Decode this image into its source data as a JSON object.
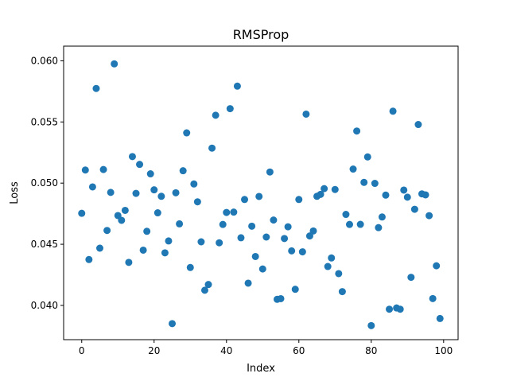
{
  "chart_data": {
    "type": "scatter",
    "title": "RMSProp",
    "xlabel": "Index",
    "ylabel": "Loss",
    "xlim": [
      -5.0,
      104.0
    ],
    "ylim": [
      0.0372,
      0.0612
    ],
    "xticks": [
      0,
      20,
      40,
      60,
      80,
      100
    ],
    "xtick_labels": [
      "0",
      "20",
      "40",
      "60",
      "80",
      "100"
    ],
    "yticks": [
      0.04,
      0.045,
      0.05,
      0.055,
      0.06
    ],
    "ytick_labels": [
      "0.040",
      "0.045",
      "0.050",
      "0.055",
      "0.060"
    ],
    "grid": false,
    "color": "#1f77b4",
    "x": [
      0,
      1,
      2,
      3,
      4,
      5,
      6,
      7,
      8,
      9,
      10,
      11,
      12,
      13,
      14,
      15,
      16,
      17,
      18,
      19,
      20,
      21,
      22,
      23,
      24,
      25,
      26,
      27,
      28,
      29,
      30,
      31,
      32,
      33,
      34,
      35,
      36,
      37,
      38,
      39,
      40,
      41,
      42,
      43,
      44,
      45,
      46,
      47,
      48,
      49,
      50,
      51,
      52,
      53,
      54,
      55,
      56,
      57,
      58,
      59,
      60,
      61,
      62,
      63,
      64,
      65,
      66,
      67,
      68,
      69,
      70,
      71,
      72,
      73,
      74,
      75,
      76,
      77,
      78,
      79,
      80,
      81,
      82,
      83,
      84,
      85,
      86,
      87,
      88,
      89,
      90,
      91,
      92,
      93,
      94,
      95,
      96,
      97,
      98,
      99
    ],
    "y": [
      0.04753,
      0.05107,
      0.04375,
      0.04969,
      0.05774,
      0.04468,
      0.05111,
      0.04613,
      0.04924,
      0.05975,
      0.04735,
      0.04696,
      0.04777,
      0.04352,
      0.05217,
      0.04916,
      0.05153,
      0.04452,
      0.04606,
      0.05076,
      0.04945,
      0.04757,
      0.04892,
      0.0443,
      0.04527,
      0.03851,
      0.04921,
      0.04667,
      0.05101,
      0.05411,
      0.0431,
      0.04993,
      0.04847,
      0.0452,
      0.04124,
      0.04171,
      0.05286,
      0.05555,
      0.04512,
      0.04662,
      0.0476,
      0.05609,
      0.04763,
      0.05793,
      0.04553,
      0.04866,
      0.04182,
      0.04648,
      0.044,
      0.04891,
      0.04298,
      0.04559,
      0.05091,
      0.04698,
      0.0405,
      0.04055,
      0.04547,
      0.04643,
      0.04446,
      0.04132,
      0.04866,
      0.04438,
      0.05564,
      0.04568,
      0.04609,
      0.04892,
      0.04908,
      0.04955,
      0.04318,
      0.04388,
      0.04948,
      0.0426,
      0.04113,
      0.04744,
      0.04662,
      0.05115,
      0.05426,
      0.04663,
      0.05006,
      0.05214,
      0.03835,
      0.04998,
      0.04636,
      0.04723,
      0.04902,
      0.03969,
      0.05588,
      0.03979,
      0.03969,
      0.04943,
      0.04885,
      0.0423,
      0.04786,
      0.05479,
      0.04912,
      0.04904,
      0.04734,
      0.04056,
      0.04324,
      0.03893
    ]
  }
}
